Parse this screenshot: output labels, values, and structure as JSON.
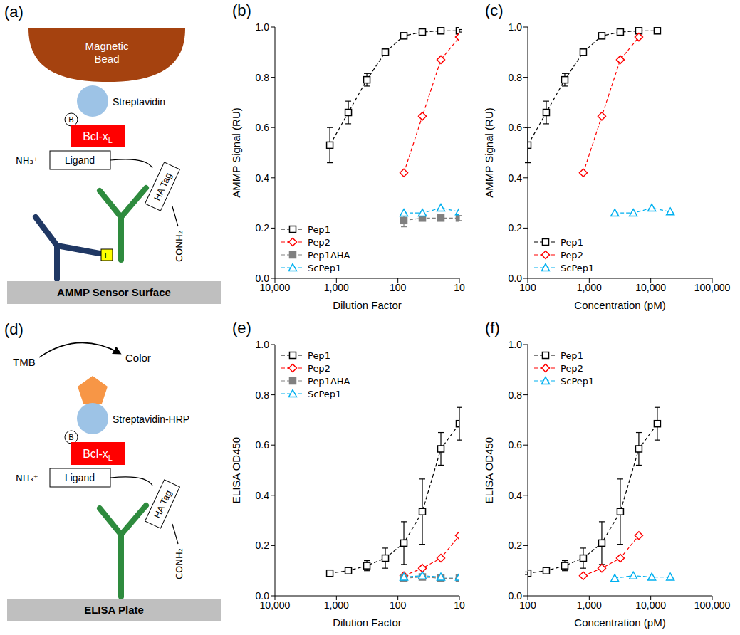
{
  "diagrams": [
    {
      "title": "(a)",
      "bead": "Magnetic Bead",
      "streptavidin": "Streptavidin",
      "biotin": "B",
      "protein": {
        "text": "Bcl-x",
        "subscript": "L"
      },
      "n_terminus": "NH₃⁺",
      "ligand": "Ligand",
      "tag": "HA Tag",
      "c_terminus": "CONH₂",
      "label": "F",
      "surface": "AMMP Sensor Surface"
    },
    {
      "title": "(d)",
      "substrate": "TMB",
      "product": "Color",
      "streptavidin": "Streptavidin-HRP",
      "biotin": "B",
      "protein": {
        "text": "Bcl-x",
        "subscript": "L"
      },
      "n_terminus": "NH₃⁺",
      "ligand": "Ligand",
      "tag": "HA Tag",
      "c_terminus": "CONH₂",
      "surface": "ELISA Plate"
    }
  ],
  "chart_data": [
    {
      "type": "line",
      "title": "(b)",
      "x_label": "Dilution Factor",
      "y_label": "AMMP Signal (RU)",
      "log": "x",
      "xlim": [
        10000,
        10
      ],
      "xticks": [
        {
          "value": 10000,
          "label": "10,000"
        },
        {
          "value": 1000,
          "label": "1,000"
        },
        100,
        10
      ],
      "ylim": [
        0,
        1
      ],
      "yticks": [
        {
          "value": 0,
          "label": "0.0"
        },
        0.2,
        0.4,
        0.6,
        0.8,
        {
          "value": 1,
          "label": "1.0"
        }
      ],
      "legend": "lower left",
      "line_style": "dashed",
      "series": [
        {
          "name": "Pep1",
          "color": "#000000",
          "marker": "open-square",
          "x": [
            1280,
            640,
            320,
            160,
            80,
            40,
            20,
            10
          ],
          "values": [
            0.53,
            0.66,
            0.79,
            0.9,
            0.965,
            0.98,
            0.985,
            0.985
          ],
          "errors": [
            0.07,
            0.045,
            0.025,
            0.01,
            0.01,
            0.005,
            0.005,
            0.005
          ]
        },
        {
          "name": "Pep2",
          "color": "#ff0000",
          "marker": "open-diamond",
          "x": [
            80,
            40,
            20,
            10
          ],
          "values": [
            0.42,
            0.645,
            0.87,
            0.96
          ]
        },
        {
          "name": "Pep1ΔHA",
          "color": "#808080",
          "marker": "filled-square",
          "x": [
            80,
            40,
            20,
            10
          ],
          "values": [
            0.23,
            0.24,
            0.24,
            0.24
          ],
          "errors": [
            0.025,
            0.01,
            0.01,
            0.01
          ]
        },
        {
          "name": "ScPep1",
          "color": "#00b0f0",
          "marker": "open-triangle",
          "x": [
            80,
            40,
            20,
            10
          ],
          "values": [
            0.26,
            0.26,
            0.28,
            0.265
          ]
        }
      ]
    },
    {
      "type": "line",
      "title": "(c)",
      "x_label": "Concentration (pM)",
      "y_label": "AMMP Signal (RU)",
      "log": "x",
      "xlim": [
        100,
        100000
      ],
      "xticks": [
        100,
        {
          "value": 1000,
          "label": "1,000"
        },
        {
          "value": 10000,
          "label": "10,000"
        },
        {
          "value": 100000,
          "label": "100,000"
        }
      ],
      "ylim": [
        0,
        1
      ],
      "yticks": [
        {
          "value": 0,
          "label": "0.0"
        },
        0.2,
        0.4,
        0.6,
        0.8,
        {
          "value": 1,
          "label": "1.0"
        }
      ],
      "legend": "lower left",
      "line_style": "dashed",
      "series": [
        {
          "name": "Pep1",
          "color": "#000000",
          "marker": "open-square",
          "x": [
            100,
            200,
            400,
            800,
            1600,
            3200,
            6400,
            12800
          ],
          "values": [
            0.53,
            0.66,
            0.79,
            0.9,
            0.965,
            0.98,
            0.985,
            0.985
          ],
          "errors": [
            0.07,
            0.045,
            0.025,
            0.01,
            0.01,
            0.005,
            0.005,
            0.005
          ]
        },
        {
          "name": "Pep2",
          "color": "#ff0000",
          "marker": "open-diamond",
          "x": [
            800,
            1600,
            3200,
            6400
          ],
          "values": [
            0.42,
            0.645,
            0.87,
            0.96
          ]
        },
        {
          "name": "ScPep1",
          "color": "#00b0f0",
          "marker": "open-triangle",
          "x": [
            2600,
            5200,
            10400,
            20800
          ],
          "values": [
            0.26,
            0.26,
            0.28,
            0.265
          ]
        }
      ]
    },
    {
      "type": "line",
      "title": "(e)",
      "x_label": "Dilution Factor",
      "y_label": "ELISA OD450",
      "log": "x",
      "xlim": [
        10000,
        10
      ],
      "xticks": [
        {
          "value": 10000,
          "label": "10,000"
        },
        {
          "value": 1000,
          "label": "1,000"
        },
        100,
        10
      ],
      "ylim": [
        0,
        1
      ],
      "yticks": [
        {
          "value": 0,
          "label": "0.0"
        },
        0.2,
        0.4,
        0.6,
        0.8,
        {
          "value": 1,
          "label": "1.0"
        }
      ],
      "legend": "upper left",
      "line_style": "dashed",
      "series": [
        {
          "name": "Pep1",
          "color": "#000000",
          "marker": "open-square",
          "x": [
            1280,
            640,
            320,
            160,
            80,
            40,
            20,
            10
          ],
          "values": [
            0.09,
            0.1,
            0.12,
            0.15,
            0.21,
            0.335,
            0.585,
            0.685
          ],
          "errors": [
            0.005,
            0.005,
            0.02,
            0.04,
            0.085,
            0.13,
            0.065,
            0.065
          ]
        },
        {
          "name": "Pep2",
          "color": "#ff0000",
          "marker": "open-diamond",
          "x": [
            80,
            40,
            20,
            10
          ],
          "values": [
            0.08,
            0.11,
            0.15,
            0.24
          ]
        },
        {
          "name": "Pep1ΔHA",
          "color": "#808080",
          "marker": "filled-square",
          "x": [
            80,
            40,
            20,
            10
          ],
          "values": [
            0.07,
            0.075,
            0.07,
            0.07
          ]
        },
        {
          "name": "ScPep1",
          "color": "#00b0f0",
          "marker": "open-triangle",
          "x": [
            80,
            40,
            20,
            10
          ],
          "values": [
            0.075,
            0.08,
            0.075,
            0.075
          ]
        }
      ]
    },
    {
      "type": "line",
      "title": "(f)",
      "x_label": "Concentration (pM)",
      "y_label": "ELISA OD450",
      "log": "x",
      "xlim": [
        100,
        100000
      ],
      "xticks": [
        100,
        {
          "value": 1000,
          "label": "1,000"
        },
        {
          "value": 10000,
          "label": "10,000"
        },
        {
          "value": 100000,
          "label": "100,000"
        }
      ],
      "ylim": [
        0,
        1
      ],
      "yticks": [
        {
          "value": 0,
          "label": "0.0"
        },
        0.2,
        0.4,
        0.6,
        0.8,
        {
          "value": 1,
          "label": "1.0"
        }
      ],
      "legend": "upper left",
      "line_style": "dashed",
      "series": [
        {
          "name": "Pep1",
          "color": "#000000",
          "marker": "open-square",
          "x": [
            100,
            200,
            400,
            800,
            1600,
            3200,
            6400,
            12800
          ],
          "values": [
            0.09,
            0.1,
            0.12,
            0.15,
            0.21,
            0.335,
            0.585,
            0.685
          ],
          "errors": [
            0.005,
            0.005,
            0.02,
            0.04,
            0.085,
            0.13,
            0.065,
            0.065
          ]
        },
        {
          "name": "Pep2",
          "color": "#ff0000",
          "marker": "open-diamond",
          "x": [
            800,
            1600,
            3200,
            6400
          ],
          "values": [
            0.08,
            0.11,
            0.15,
            0.24
          ]
        },
        {
          "name": "ScPep1",
          "color": "#00b0f0",
          "marker": "open-triangle",
          "x": [
            2600,
            5200,
            10400,
            20800
          ],
          "values": [
            0.07,
            0.08,
            0.075,
            0.075
          ]
        }
      ]
    }
  ]
}
